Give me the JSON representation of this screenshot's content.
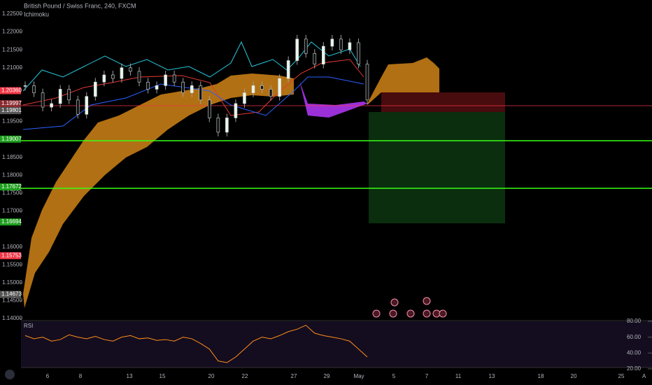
{
  "header": {
    "title": "British Pound / Swiss Franc, 240, FXCM",
    "indicator": "Ichimoku"
  },
  "price_axis": {
    "ylim": [
      1.14,
      1.225
    ],
    "ticks": [
      {
        "value": 1.225,
        "label": "1.22500"
      },
      {
        "value": 1.22,
        "label": "1.22000"
      },
      {
        "value": 1.215,
        "label": "1.21500"
      },
      {
        "value": 1.21,
        "label": "1.21000"
      },
      {
        "value": 1.195,
        "label": "1.19500"
      },
      {
        "value": 1.185,
        "label": "1.18500"
      },
      {
        "value": 1.18,
        "label": "1.18000"
      },
      {
        "value": 1.175,
        "label": "1.17500"
      },
      {
        "value": 1.17,
        "label": "1.17000"
      },
      {
        "value": 1.16,
        "label": "1.16000"
      },
      {
        "value": 1.155,
        "label": "1.15500"
      },
      {
        "value": 1.15,
        "label": "1.15000"
      },
      {
        "value": 1.145,
        "label": "1.14500"
      },
      {
        "value": 1.14,
        "label": "1.14000"
      }
    ],
    "markers": [
      {
        "value": 1.2036,
        "label": "1.20360",
        "color": "#f23645"
      },
      {
        "value": 1.19997,
        "label": "1.19997",
        "color": "#8b2a30"
      },
      {
        "value": 1.19801,
        "label": "1.19801",
        "color": "#555555"
      },
      {
        "value": 1.19007,
        "label": "1.19007",
        "color": "#1e9e1e"
      },
      {
        "value": 1.17672,
        "label": "1.17672",
        "color": "#1e9e1e"
      },
      {
        "value": 1.16694,
        "label": "1.16694",
        "color": "#1e9e1e"
      },
      {
        "value": 1.15753,
        "label": "1.15753",
        "color": "#f23645"
      },
      {
        "value": 1.14673,
        "label": "1.14673",
        "color": "#555555"
      }
    ]
  },
  "price": {
    "closes": [
      1.205,
      1.203,
      1.199,
      1.2,
      1.204,
      1.201,
      1.197,
      1.202,
      1.206,
      1.208,
      1.207,
      1.21,
      1.209,
      1.206,
      1.204,
      1.205,
      1.208,
      1.206,
      1.203,
      1.205,
      1.201,
      1.196,
      1.192,
      1.196,
      1.2,
      1.203,
      1.205,
      1.204,
      1.202,
      1.207,
      1.212,
      1.218,
      1.214,
      1.211,
      1.216,
      1.218,
      1.215,
      1.217,
      1.211,
      1.201
    ]
  },
  "date_axis": {
    "labels": [
      "6",
      "8",
      "13",
      "15",
      "20",
      "22",
      "27",
      "29",
      "May",
      "5",
      "7",
      "11",
      "13",
      "18",
      "20",
      "25"
    ]
  },
  "rsi": {
    "label": "RSI",
    "ylim": [
      20,
      80
    ],
    "ticks": [
      {
        "value": 80,
        "label": "80.00"
      },
      {
        "value": 60,
        "label": "60.00"
      },
      {
        "value": 40,
        "label": "40.00"
      },
      {
        "value": 20,
        "label": "20.00"
      }
    ],
    "values": [
      62,
      58,
      60,
      55,
      57,
      63,
      60,
      58,
      61,
      57,
      55,
      60,
      62,
      58,
      59,
      56,
      57,
      55,
      60,
      58,
      52,
      45,
      30,
      28,
      35,
      45,
      55,
      60,
      58,
      62,
      67,
      70,
      75,
      65,
      62,
      60,
      58,
      55,
      45,
      35
    ]
  },
  "corner": "A"
}
